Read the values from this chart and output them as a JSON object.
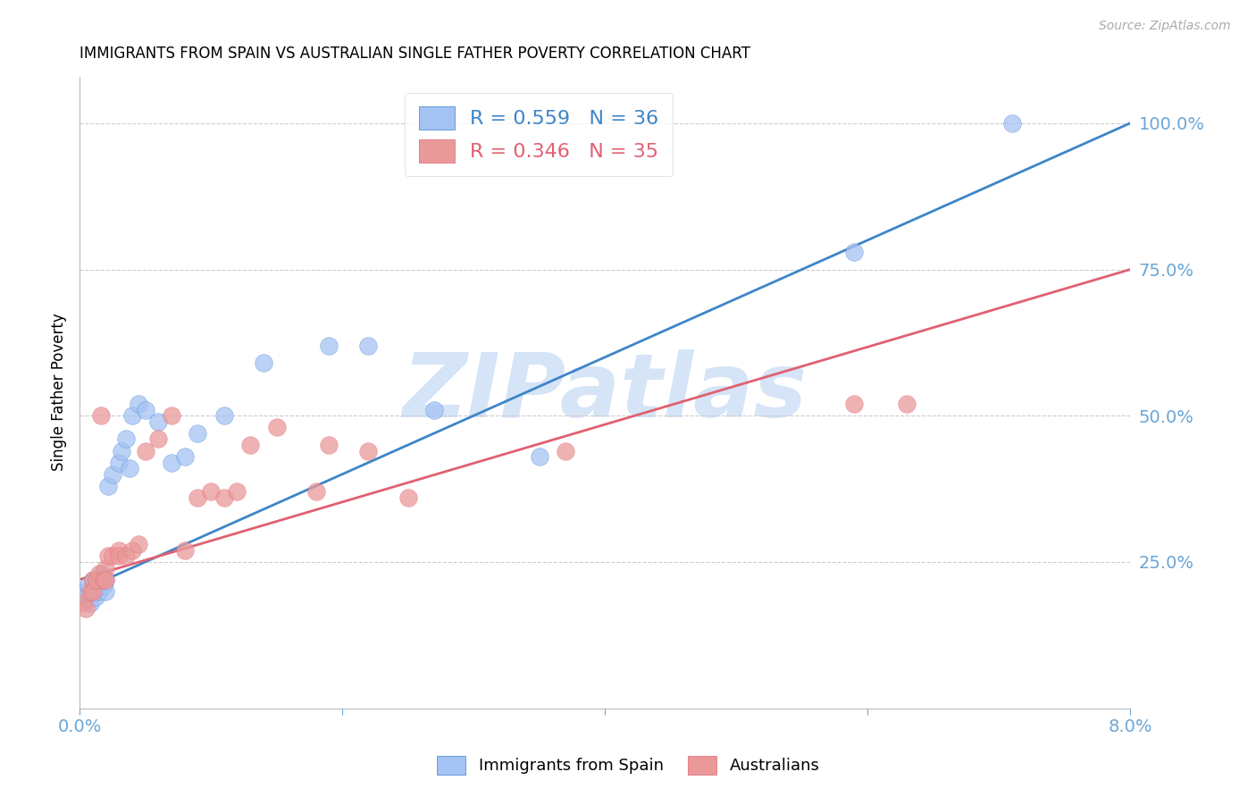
{
  "title": "IMMIGRANTS FROM SPAIN VS AUSTRALIAN SINGLE FATHER POVERTY CORRELATION CHART",
  "source": "Source: ZipAtlas.com",
  "ylabel": "Single Father Poverty",
  "xlim": [
    0.0,
    0.08
  ],
  "ylim": [
    0.0,
    1.08
  ],
  "yticks": [
    0.25,
    0.5,
    0.75,
    1.0
  ],
  "ytick_labels": [
    "25.0%",
    "50.0%",
    "75.0%",
    "100.0%"
  ],
  "xticks": [
    0.0,
    0.02,
    0.04,
    0.06,
    0.08
  ],
  "xtick_labels": [
    "0.0%",
    "",
    "",
    "",
    "8.0%"
  ],
  "legend_blue_r": "R = 0.559",
  "legend_blue_n": "N = 36",
  "legend_pink_r": "R = 0.346",
  "legend_pink_n": "N = 35",
  "blue_color": "#a4c2f4",
  "pink_color": "#ea9999",
  "blue_line_color": "#3d85c8",
  "pink_line_color": "#e06070",
  "axis_color": "#6aa6d6",
  "watermark": "ZIPatlas",
  "watermark_color": "#d6e4f7",
  "blue_line_x0": 0.0,
  "blue_line_y0": 0.2,
  "blue_line_x1": 0.08,
  "blue_line_y1": 1.0,
  "pink_line_x0": 0.0,
  "pink_line_y0": 0.22,
  "pink_line_x1": 0.08,
  "pink_line_y1": 0.75,
  "blue_x": [
    0.0003,
    0.0005,
    0.0007,
    0.0008,
    0.001,
    0.001,
    0.0012,
    0.0013,
    0.0014,
    0.0015,
    0.0016,
    0.0017,
    0.0018,
    0.002,
    0.002,
    0.0022,
    0.0025,
    0.003,
    0.0032,
    0.0035,
    0.0038,
    0.004,
    0.0045,
    0.005,
    0.006,
    0.007,
    0.008,
    0.009,
    0.011,
    0.014,
    0.019,
    0.022,
    0.027,
    0.035,
    0.059,
    0.071
  ],
  "blue_y": [
    0.19,
    0.2,
    0.21,
    0.18,
    0.22,
    0.2,
    0.19,
    0.21,
    0.22,
    0.2,
    0.22,
    0.23,
    0.21,
    0.22,
    0.2,
    0.38,
    0.4,
    0.42,
    0.44,
    0.46,
    0.41,
    0.5,
    0.52,
    0.51,
    0.49,
    0.42,
    0.43,
    0.47,
    0.5,
    0.59,
    0.62,
    0.62,
    0.51,
    0.43,
    0.78,
    1.0
  ],
  "pink_x": [
    0.0003,
    0.0005,
    0.0008,
    0.001,
    0.001,
    0.0013,
    0.0015,
    0.0016,
    0.0018,
    0.002,
    0.002,
    0.0022,
    0.0025,
    0.003,
    0.003,
    0.0035,
    0.004,
    0.0045,
    0.005,
    0.006,
    0.007,
    0.008,
    0.009,
    0.01,
    0.011,
    0.012,
    0.013,
    0.015,
    0.018,
    0.019,
    0.022,
    0.025,
    0.037,
    0.059,
    0.063
  ],
  "pink_y": [
    0.18,
    0.17,
    0.2,
    0.22,
    0.2,
    0.22,
    0.23,
    0.5,
    0.22,
    0.24,
    0.22,
    0.26,
    0.26,
    0.27,
    0.26,
    0.26,
    0.27,
    0.28,
    0.44,
    0.46,
    0.5,
    0.27,
    0.36,
    0.37,
    0.36,
    0.37,
    0.45,
    0.48,
    0.37,
    0.45,
    0.44,
    0.36,
    0.44,
    0.52,
    0.52
  ],
  "figsize": [
    14.06,
    8.92
  ],
  "dpi": 100
}
